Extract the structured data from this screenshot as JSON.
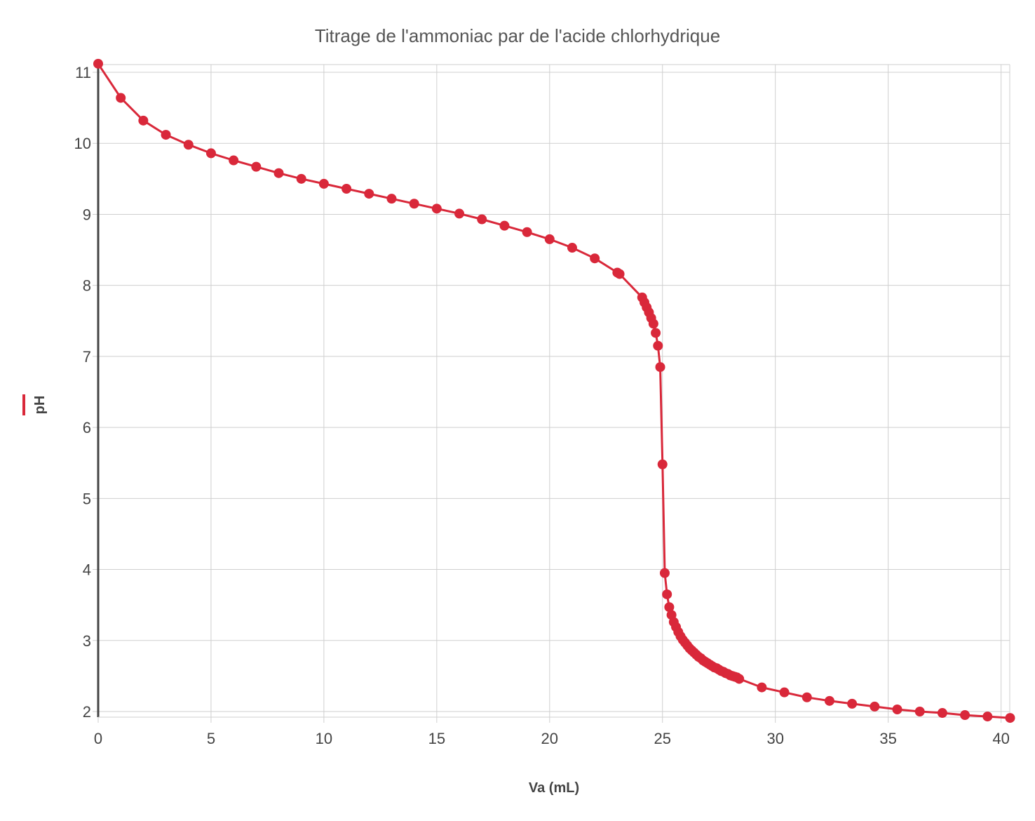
{
  "chart_data": {
    "type": "line",
    "title": "Titrage de l'ammoniac par de l'acide chlorhydrique",
    "xlabel": "Va (mL)",
    "ylabel": "pH",
    "xlim": [
      0,
      40.4
    ],
    "ylim": [
      2,
      11.1
    ],
    "x_ticks": [
      "0",
      "5",
      "10",
      "15",
      "20",
      "25",
      "30",
      "35",
      "40"
    ],
    "y_ticks": [
      "2",
      "3",
      "4",
      "5",
      "6",
      "7",
      "8",
      "9",
      "10",
      "11"
    ],
    "grid": true,
    "legend": "left, beside y-axis",
    "series": [
      {
        "name": "pH",
        "color": "#d9283a",
        "x": [
          0,
          1,
          2,
          3,
          4,
          5,
          6,
          7,
          8,
          9,
          10,
          11,
          12,
          13,
          14,
          15,
          16,
          17,
          18,
          19,
          20,
          21,
          22,
          23,
          23.1,
          24.1,
          24.2,
          24.3,
          24.4,
          24.5,
          24.6,
          24.7,
          24.8,
          24.9,
          25.0,
          25.1,
          25.2,
          25.3,
          25.4,
          25.5,
          25.6,
          25.7,
          25.8,
          25.9,
          26.0,
          26.1,
          26.2,
          26.3,
          26.4,
          26.5,
          26.6,
          26.7,
          26.8,
          26.9,
          27.0,
          27.1,
          27.2,
          27.3,
          27.4,
          27.5,
          27.6,
          27.7,
          27.8,
          27.9,
          28.0,
          28.1,
          28.2,
          28.3,
          28.4,
          29.4,
          30.4,
          31.4,
          32.4,
          33.4,
          34.4,
          35.4,
          36.4,
          37.4,
          38.4,
          39.4,
          40.4
        ],
        "y": [
          11.12,
          10.64,
          10.32,
          10.12,
          9.98,
          9.86,
          9.76,
          9.67,
          9.58,
          9.5,
          9.43,
          9.36,
          9.29,
          9.22,
          9.15,
          9.08,
          9.01,
          8.93,
          8.84,
          8.75,
          8.65,
          8.53,
          8.38,
          8.18,
          8.16,
          7.83,
          7.76,
          7.69,
          7.62,
          7.54,
          7.46,
          7.33,
          7.15,
          6.85,
          5.48,
          3.95,
          3.65,
          3.47,
          3.36,
          3.26,
          3.19,
          3.12,
          3.06,
          3.01,
          2.97,
          2.93,
          2.89,
          2.86,
          2.83,
          2.8,
          2.77,
          2.75,
          2.72,
          2.7,
          2.68,
          2.66,
          2.64,
          2.62,
          2.61,
          2.59,
          2.57,
          2.56,
          2.54,
          2.53,
          2.51,
          2.5,
          2.49,
          2.48,
          2.46,
          2.34,
          2.27,
          2.2,
          2.15,
          2.11,
          2.07,
          2.03,
          2.0,
          1.98,
          1.95,
          1.93,
          1.91
        ]
      }
    ]
  }
}
